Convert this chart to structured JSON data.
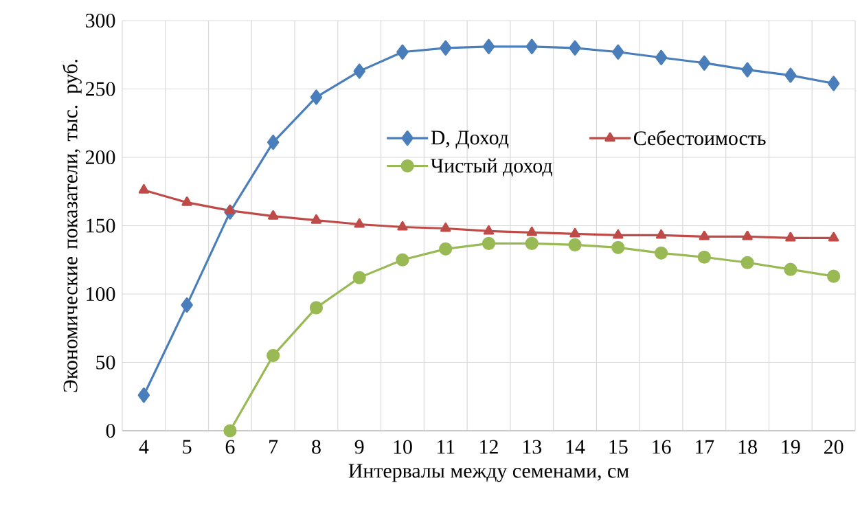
{
  "chart_data": {
    "type": "line",
    "xlabel": "Интервалы между семенами, см",
    "ylabel": "Экономические показатели, тыс. руб.",
    "categories": [
      "4",
      "5",
      "6",
      "7",
      "8",
      "9",
      "10",
      "11",
      "12",
      "13",
      "14",
      "15",
      "16",
      "17",
      "18",
      "19",
      "20"
    ],
    "series": [
      {
        "name": "D, Доход",
        "color": "#4a7ebb",
        "marker": "diamond",
        "values": [
          26,
          92,
          160,
          211,
          244,
          263,
          277,
          280,
          281,
          281,
          280,
          277,
          273,
          269,
          264,
          260,
          254
        ]
      },
      {
        "name": "Себестоимость",
        "color": "#be4b48",
        "marker": "triangle",
        "values": [
          176,
          167,
          161,
          157,
          154,
          151,
          149,
          148,
          146,
          145,
          144,
          143,
          143,
          142,
          142,
          141,
          141
        ]
      },
      {
        "name": "Чистый доход",
        "color": "#98b954",
        "marker": "circle",
        "values": [
          null,
          null,
          0,
          55,
          90,
          112,
          125,
          133,
          137,
          137,
          136,
          134,
          130,
          127,
          123,
          118,
          113
        ]
      }
    ],
    "ylim": [
      0,
      300
    ],
    "yticks": [
      0,
      50,
      100,
      150,
      200,
      250,
      300
    ],
    "grid": true,
    "legend": "top"
  }
}
